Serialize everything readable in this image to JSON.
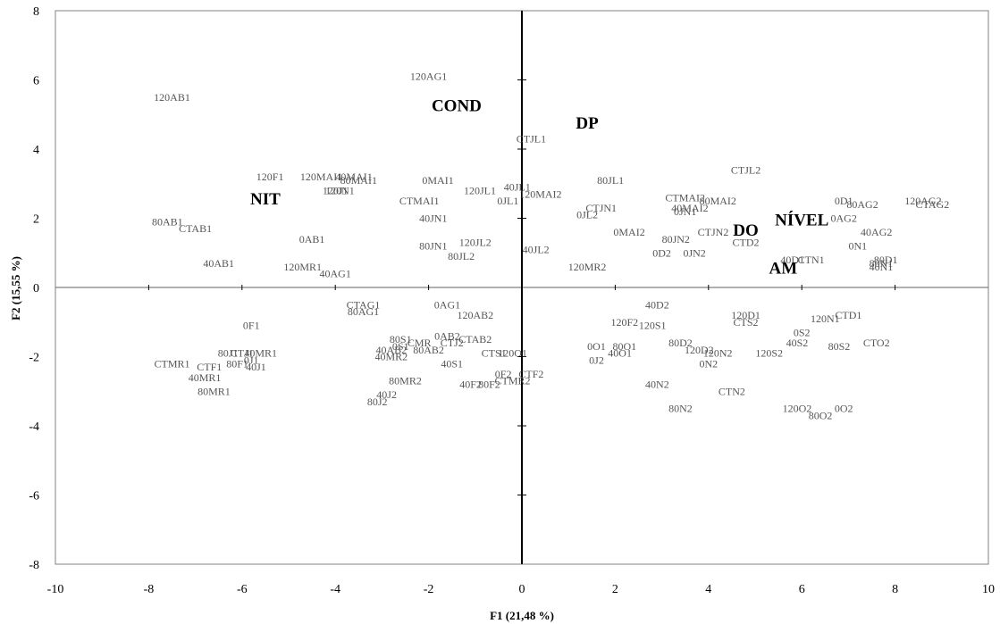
{
  "chart_data": {
    "type": "scatter",
    "title": "",
    "xlabel": "F1 (21,48 %)",
    "ylabel": "F2 (15,55 %)",
    "xlim": [
      -10,
      10
    ],
    "ylim": [
      -8,
      8
    ],
    "xticks": [
      -10,
      -8,
      -6,
      -4,
      -2,
      0,
      2,
      4,
      6,
      8,
      10
    ],
    "yticks": [
      -8,
      -6,
      -4,
      -2,
      0,
      2,
      4,
      6,
      8
    ],
    "grid": false,
    "legend": "none",
    "colors": {
      "observations": "#555555",
      "variables": "#000000",
      "axes": "#000000",
      "frame": "#808080"
    },
    "series": [
      {
        "points": [
          {
            "label": "120AB1",
            "x": -7.5,
            "y": 5.5
          },
          {
            "label": "120AG1",
            "x": -2.0,
            "y": 6.1
          },
          {
            "label": "CTJL1",
            "x": 0.2,
            "y": 4.3
          },
          {
            "label": "120F1",
            "x": -5.4,
            "y": 3.2
          },
          {
            "label": "120MAI1",
            "x": -4.3,
            "y": 3.2
          },
          {
            "label": "40MAI1",
            "x": -3.6,
            "y": 3.2
          },
          {
            "label": "80MAI1",
            "x": -3.5,
            "y": 3.1
          },
          {
            "label": "0MAI1",
            "x": -1.8,
            "y": 3.1
          },
          {
            "label": "120J1",
            "x": -4.0,
            "y": 2.8
          },
          {
            "label": "120N1",
            "x": -3.9,
            "y": 2.8
          },
          {
            "label": "CTMAI1",
            "x": -2.2,
            "y": 2.5
          },
          {
            "label": "120JL1",
            "x": -0.9,
            "y": 2.8
          },
          {
            "label": "40JL1",
            "x": -0.1,
            "y": 2.9
          },
          {
            "label": "120MAI2",
            "x": 0.4,
            "y": 2.7
          },
          {
            "label": "0JL1",
            "x": -0.3,
            "y": 2.5
          },
          {
            "label": "80JL1",
            "x": 1.9,
            "y": 3.1
          },
          {
            "label": "CTJN1",
            "x": 1.7,
            "y": 2.3
          },
          {
            "label": "0JL2",
            "x": 1.4,
            "y": 2.1
          },
          {
            "label": "CTJL2",
            "x": 4.8,
            "y": 3.4
          },
          {
            "label": "CTMAI2",
            "x": 3.5,
            "y": 2.6
          },
          {
            "label": "80MAI2",
            "x": 4.2,
            "y": 2.5
          },
          {
            "label": "40MAI2",
            "x": 3.6,
            "y": 2.3
          },
          {
            "label": "0JN1",
            "x": 3.5,
            "y": 2.2
          },
          {
            "label": "0D1",
            "x": 6.9,
            "y": 2.5
          },
          {
            "label": "80AG2",
            "x": 7.3,
            "y": 2.4
          },
          {
            "label": "120AG2",
            "x": 8.6,
            "y": 2.5
          },
          {
            "label": "CTAG2",
            "x": 8.8,
            "y": 2.4
          },
          {
            "label": "0AG2",
            "x": 6.9,
            "y": 2.0
          },
          {
            "label": "80AB1",
            "x": -7.6,
            "y": 1.9
          },
          {
            "label": "CTAB1",
            "x": -7.0,
            "y": 1.7
          },
          {
            "label": "40JN1",
            "x": -1.9,
            "y": 2.0
          },
          {
            "label": "0AB1",
            "x": -4.5,
            "y": 1.4
          },
          {
            "label": "80JN1",
            "x": -1.9,
            "y": 1.2
          },
          {
            "label": "120JL2",
            "x": -1.0,
            "y": 1.3
          },
          {
            "label": "80JL2",
            "x": -1.3,
            "y": 0.9
          },
          {
            "label": "40JL2",
            "x": 0.3,
            "y": 1.1
          },
          {
            "label": "0MAI2",
            "x": 2.3,
            "y": 1.6
          },
          {
            "label": "80JN2",
            "x": 3.3,
            "y": 1.4
          },
          {
            "label": "CTJN2",
            "x": 4.1,
            "y": 1.6
          },
          {
            "label": "CTD2",
            "x": 4.8,
            "y": 1.3
          },
          {
            "label": "0D2",
            "x": 3.0,
            "y": 1.0
          },
          {
            "label": "0JN2",
            "x": 3.7,
            "y": 1.0
          },
          {
            "label": "40AG2",
            "x": 7.6,
            "y": 1.6
          },
          {
            "label": "0N1",
            "x": 7.2,
            "y": 1.2
          },
          {
            "label": "CTN1",
            "x": 6.2,
            "y": 0.8
          },
          {
            "label": "40D1",
            "x": 5.8,
            "y": 0.8
          },
          {
            "label": "80D1",
            "x": 7.8,
            "y": 0.8
          },
          {
            "label": "80N1",
            "x": 7.7,
            "y": 0.7
          },
          {
            "label": "40N1",
            "x": 7.7,
            "y": 0.6
          },
          {
            "label": "40AB1",
            "x": -6.5,
            "y": 0.7
          },
          {
            "label": "120MR1",
            "x": -4.7,
            "y": 0.6
          },
          {
            "label": "40AG1",
            "x": -4.0,
            "y": 0.4
          },
          {
            "label": "120MR2",
            "x": 1.4,
            "y": 0.6
          },
          {
            "label": "CTAG1",
            "x": -3.4,
            "y": -0.5
          },
          {
            "label": "80AG1",
            "x": -3.4,
            "y": -0.7
          },
          {
            "label": "0AG1",
            "x": -1.6,
            "y": -0.5
          },
          {
            "label": "120AB2",
            "x": -1.0,
            "y": -0.8
          },
          {
            "label": "40D2",
            "x": 2.9,
            "y": -0.5
          },
          {
            "label": "120D1",
            "x": 4.8,
            "y": -0.8
          },
          {
            "label": "CTD1",
            "x": 7.0,
            "y": -0.8
          },
          {
            "label": "120N1",
            "x": 6.5,
            "y": -0.9
          },
          {
            "label": "CTS2",
            "x": 4.8,
            "y": -1.0
          },
          {
            "label": "120F2",
            "x": 2.2,
            "y": -1.0
          },
          {
            "label": "120S1",
            "x": 2.8,
            "y": -1.1
          },
          {
            "label": "0F1",
            "x": -5.8,
            "y": -1.1
          },
          {
            "label": "0S2",
            "x": 6.0,
            "y": -1.3
          },
          {
            "label": "CTO2",
            "x": 7.6,
            "y": -1.6
          },
          {
            "label": "80S2",
            "x": 6.8,
            "y": -1.7
          },
          {
            "label": "40S2",
            "x": 5.9,
            "y": -1.6
          },
          {
            "label": "80D2",
            "x": 3.4,
            "y": -1.6
          },
          {
            "label": "120D2",
            "x": 3.8,
            "y": -1.8
          },
          {
            "label": "120N2",
            "x": 4.2,
            "y": -1.9
          },
          {
            "label": "120S2",
            "x": 5.3,
            "y": -1.9
          },
          {
            "label": "0N2",
            "x": 4.0,
            "y": -2.2
          },
          {
            "label": "0O1",
            "x": 1.6,
            "y": -1.7
          },
          {
            "label": "80O1",
            "x": 2.2,
            "y": -1.7
          },
          {
            "label": "40O1",
            "x": 2.1,
            "y": -1.9
          },
          {
            "label": "0J2",
            "x": 1.6,
            "y": -2.1
          },
          {
            "label": "80S1",
            "x": -2.6,
            "y": -1.5
          },
          {
            "label": "0AB2",
            "x": -1.6,
            "y": -1.4
          },
          {
            "label": "CTAB2",
            "x": -1.0,
            "y": -1.5
          },
          {
            "label": "0S1",
            "x": -2.6,
            "y": -1.7
          },
          {
            "label": "CMR",
            "x": -2.2,
            "y": -1.6
          },
          {
            "label": "CTJ2",
            "x": -1.5,
            "y": -1.6
          },
          {
            "label": "40AB2",
            "x": -2.8,
            "y": -1.8
          },
          {
            "label": "80AB2",
            "x": -2.0,
            "y": -1.8
          },
          {
            "label": "40MR2",
            "x": -2.8,
            "y": -2.0
          },
          {
            "label": "CTS1",
            "x": -0.6,
            "y": -1.9
          },
          {
            "label": "120O1",
            "x": -0.2,
            "y": -1.9
          },
          {
            "label": "40S1",
            "x": -1.5,
            "y": -2.2
          },
          {
            "label": "0F2",
            "x": -0.4,
            "y": -2.5
          },
          {
            "label": "CTF2",
            "x": 0.2,
            "y": -2.5
          },
          {
            "label": "80MR2",
            "x": -2.5,
            "y": -2.7
          },
          {
            "label": "40F2",
            "x": -1.1,
            "y": -2.8
          },
          {
            "label": "80F2",
            "x": -0.7,
            "y": -2.8
          },
          {
            "label": "CTMR2",
            "x": -0.2,
            "y": -2.7
          },
          {
            "label": "40J2",
            "x": -2.9,
            "y": -3.1
          },
          {
            "label": "80J2",
            "x": -3.1,
            "y": -3.3
          },
          {
            "label": "40N2",
            "x": 2.9,
            "y": -2.8
          },
          {
            "label": "CTN2",
            "x": 4.5,
            "y": -3.0
          },
          {
            "label": "80N2",
            "x": 3.4,
            "y": -3.5
          },
          {
            "label": "120O2",
            "x": 5.9,
            "y": -3.5
          },
          {
            "label": "0O2",
            "x": 6.9,
            "y": -3.5
          },
          {
            "label": "80O2",
            "x": 6.4,
            "y": -3.7
          },
          {
            "label": "80J1",
            "x": -6.3,
            "y": -1.9
          },
          {
            "label": "CTJ1",
            "x": -6.0,
            "y": -1.9
          },
          {
            "label": "40MR1",
            "x": -5.6,
            "y": -1.9
          },
          {
            "label": "CTMR1",
            "x": -7.5,
            "y": -2.2
          },
          {
            "label": "CTF1",
            "x": -6.7,
            "y": -2.3
          },
          {
            "label": "80F1",
            "x": -6.1,
            "y": -2.2
          },
          {
            "label": "0J1",
            "x": -5.8,
            "y": -2.1
          },
          {
            "label": "40J1",
            "x": -5.7,
            "y": -2.3
          },
          {
            "label": "40MR1",
            "x": -6.8,
            "y": -2.6
          },
          {
            "label": "80MR1",
            "x": -6.6,
            "y": -3.0
          }
        ]
      },
      {
        "points": [
          {
            "label": "COND",
            "x": -1.4,
            "y": 5.2
          },
          {
            "label": "DP",
            "x": 1.4,
            "y": 4.7
          },
          {
            "label": "NIT",
            "x": -5.5,
            "y": 2.5
          },
          {
            "label": "NÍVEL",
            "x": 6.0,
            "y": 1.9
          },
          {
            "label": "DO",
            "x": 4.8,
            "y": 1.6
          },
          {
            "label": "AM",
            "x": 5.6,
            "y": 0.5
          }
        ]
      }
    ]
  }
}
